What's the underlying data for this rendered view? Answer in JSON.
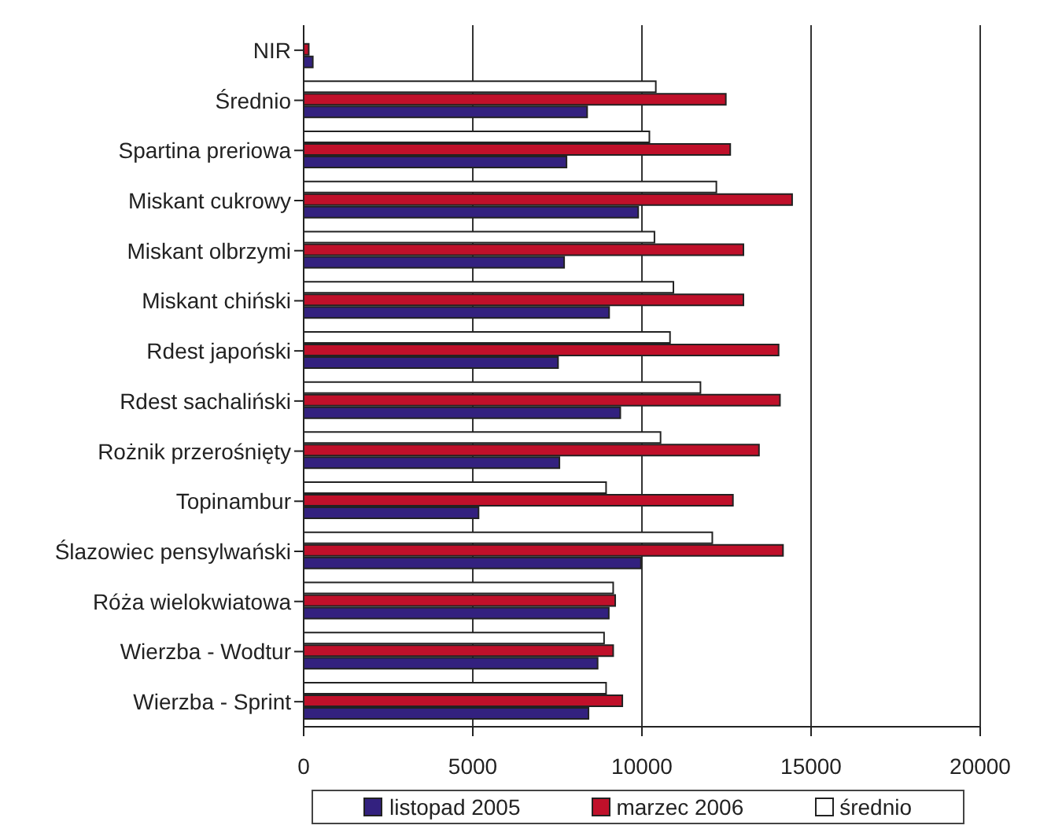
{
  "chart_data": {
    "type": "bar",
    "orientation": "horizontal",
    "categories": [
      "NIR",
      "Średnio",
      "Spartina preriowa",
      "Miskant cukrowy",
      "Miskant olbrzymi",
      "Miskant chiński",
      "Rdest japoński",
      "Rdest sachaliński",
      "Rożnik przerośnięty",
      "Topinambur",
      "Ślazowiec pensylwański",
      "Róża wielokwiatowa",
      "Wierzba - Wodtur",
      "Wierzba - Sprint"
    ],
    "series": [
      {
        "name": "listopad 2005",
        "color": "#33217f",
        "values": [
          270,
          8380,
          7770,
          9890,
          7700,
          9030,
          7520,
          9360,
          7560,
          5170,
          9970,
          9020,
          8690,
          8420
        ]
      },
      {
        "name": "marzec 2006",
        "color": "#c0102a",
        "values": [
          150,
          12480,
          12610,
          14440,
          13000,
          13000,
          14040,
          14080,
          13460,
          12690,
          14170,
          9210,
          9150,
          9420
        ]
      },
      {
        "name": "średnio",
        "color": "#ffffff",
        "values": [
          null,
          10410,
          10220,
          12200,
          10370,
          10930,
          10830,
          11730,
          10550,
          8940,
          12080,
          9150,
          8880,
          8940
        ]
      }
    ],
    "xlim": [
      0,
      20000
    ],
    "xticks": [
      0,
      5000,
      10000,
      15000,
      {
        "value": 20000,
        "label": "20000"
      }
    ],
    "grid": "x",
    "legend": "bottom"
  }
}
